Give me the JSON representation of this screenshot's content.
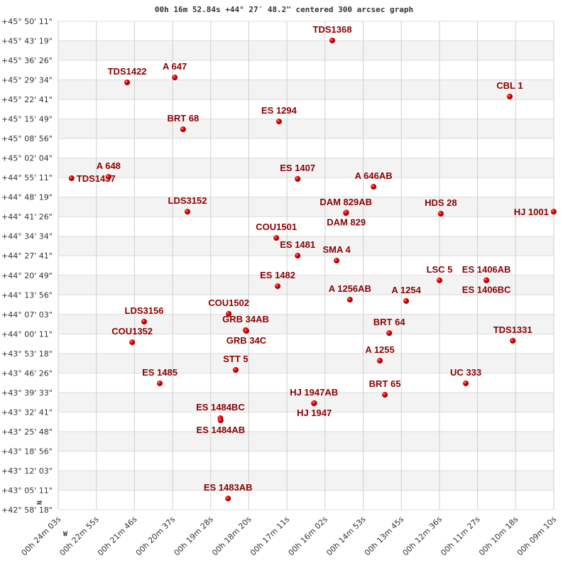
{
  "chart_data": {
    "type": "scatter",
    "title": "00h 16m 52.84s +44° 27′ 48.2\" centered 300 arcsec graph",
    "x_unit": "RA minutes (00h)",
    "y_unit": "Dec degrees",
    "xlim": [
      24.05,
      9.1667
    ],
    "ylim": [
      42.9717,
      45.8364
    ],
    "x_reversed": true,
    "grid": true,
    "point_color": "#dd0000",
    "label_color": "#8b0000",
    "band_color": "#f3f3f3",
    "compass": {
      "north": "N",
      "west": "W"
    },
    "x_ticks": [
      "00h 24m 03s",
      "00h 22m 55s",
      "00h 21m 46s",
      "00h 20m 37s",
      "00h 19m 28s",
      "00h 18m 20s",
      "00h 17m 11s",
      "00h 16m 02s",
      "00h 14m 53s",
      "00h 13m 45s",
      "00h 12m 36s",
      "00h 11m 27s",
      "00h 10m 18s",
      "00h 09m 10s"
    ],
    "y_ticks": [
      "+45° 50' 11\"",
      "+45° 43' 19\"",
      "+45° 36' 26\"",
      "+45° 29' 34\"",
      "+45° 22' 41\"",
      "+45° 15' 49\"",
      "+45° 08' 56\"",
      "+45° 02' 04\"",
      "+44° 55' 11\"",
      "+44° 48' 19\"",
      "+44° 41' 26\"",
      "+44° 34' 34\"",
      "+44° 27' 41\"",
      "+44° 20' 49\"",
      "+44° 13' 56\"",
      "+44° 07' 03\"",
      "+44° 00' 11\"",
      "+43° 53' 18\"",
      "+43° 46' 26\"",
      "+43° 39' 33\"",
      "+43° 32' 41\"",
      "+43° 25' 48\"",
      "+43° 18' 56\"",
      "+43° 12' 03\"",
      "+43° 05' 11\"",
      "+42° 58' 18\""
    ],
    "points": [
      {
        "name": "TDS1368",
        "ra": 15.82,
        "dec": 45.724
      },
      {
        "name": "TDS1422",
        "ra": 21.98,
        "dec": 45.478
      },
      {
        "name": "A  647",
        "ra": 20.55,
        "dec": 45.507
      },
      {
        "name": "CBL   1",
        "ra": 10.49,
        "dec": 45.395
      },
      {
        "name": "BRT  68",
        "ra": 20.3,
        "dec": 45.203
      },
      {
        "name": "ES 1294",
        "ra": 17.42,
        "dec": 45.249
      },
      {
        "name": "TDS1437",
        "ra": 23.65,
        "dec": 44.916
      },
      {
        "name": "A   648",
        "ra": 22.54,
        "dec": 44.924
      },
      {
        "name": "ES 1407",
        "ra": 16.86,
        "dec": 44.912
      },
      {
        "name": "A  646AB",
        "ra": 14.58,
        "dec": 44.866
      },
      {
        "name": "LDS3152",
        "ra": 20.17,
        "dec": 44.72
      },
      {
        "name": "DAM 829AB",
        "ra": 15.41,
        "dec": 44.712
      },
      {
        "name": "DAM 829",
        "ra": 15.4,
        "dec": 44.714
      },
      {
        "name": "HDS  28",
        "ra": 12.56,
        "dec": 44.708
      },
      {
        "name": "HJ 1001",
        "ra": 9.17,
        "dec": 44.72
      },
      {
        "name": "COU1501",
        "ra": 17.5,
        "dec": 44.566
      },
      {
        "name": "ES 1481",
        "ra": 16.86,
        "dec": 44.462
      },
      {
        "name": "SMA   4",
        "ra": 15.69,
        "dec": 44.433
      },
      {
        "name": "LSC   5",
        "ra": 12.6,
        "dec": 44.317
      },
      {
        "name": "ES 1406AB",
        "ra": 11.19,
        "dec": 44.317
      },
      {
        "name": "ES 1406BC",
        "ra": 11.19,
        "dec": 44.318
      },
      {
        "name": "ES 1482",
        "ra": 17.46,
        "dec": 44.283
      },
      {
        "name": "A  1256AB",
        "ra": 15.29,
        "dec": 44.204
      },
      {
        "name": "A  1254",
        "ra": 13.6,
        "dec": 44.196
      },
      {
        "name": "COU1502",
        "ra": 18.93,
        "dec": 44.121
      },
      {
        "name": "LDS3156",
        "ra": 21.47,
        "dec": 44.075
      },
      {
        "name": "GRB  34AB",
        "ra": 18.42,
        "dec": 44.025
      },
      {
        "name": "GRB  34C",
        "ra": 18.4,
        "dec": 44.021
      },
      {
        "name": "BRT  64",
        "ra": 14.11,
        "dec": 44.008
      },
      {
        "name": "COU1352",
        "ra": 21.83,
        "dec": 43.954
      },
      {
        "name": "TDS1331",
        "ra": 10.4,
        "dec": 43.963
      },
      {
        "name": "A  1255",
        "ra": 14.39,
        "dec": 43.846
      },
      {
        "name": "STT   5",
        "ra": 18.72,
        "dec": 43.792
      },
      {
        "name": "ES 1485",
        "ra": 21.0,
        "dec": 43.713
      },
      {
        "name": "UC  333",
        "ra": 11.81,
        "dec": 43.713
      },
      {
        "name": "BRT  65",
        "ra": 14.24,
        "dec": 43.646
      },
      {
        "name": "HJ 1947AB",
        "ra": 16.37,
        "dec": 43.596
      },
      {
        "name": "HJ 1947",
        "ra": 16.36,
        "dec": 43.597
      },
      {
        "name": "ES 1484BC",
        "ra": 19.18,
        "dec": 43.509
      },
      {
        "name": "ES 1484AB",
        "ra": 19.17,
        "dec": 43.496
      },
      {
        "name": "ES 1483AB",
        "ra": 18.95,
        "dec": 43.038
      }
    ]
  }
}
